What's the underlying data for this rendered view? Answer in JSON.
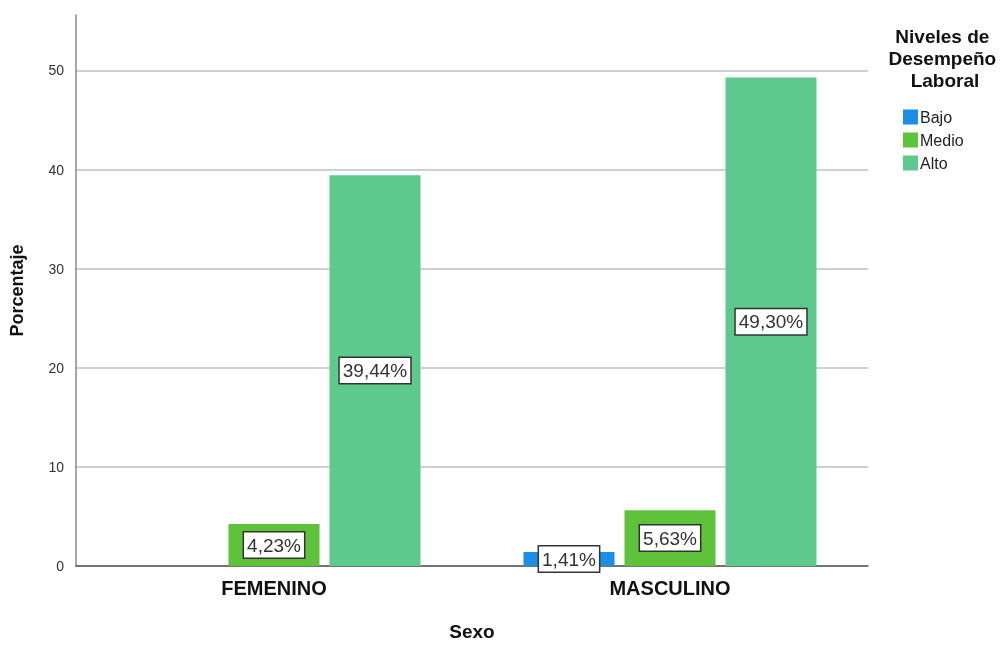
{
  "chart_data": {
    "type": "bar",
    "xlabel": "Sexo",
    "ylabel": "Porcentaje",
    "legend_title": "Niveles de Desempeño Laboral",
    "categories": [
      "FEMENINO",
      "MASCULINO"
    ],
    "series": [
      {
        "name": "Bajo",
        "color": "#1c8ee6",
        "values": [
          null,
          1.41
        ],
        "value_labels": [
          null,
          "1,41%"
        ]
      },
      {
        "name": "Medio",
        "color": "#5ec23a",
        "values": [
          4.23,
          5.63
        ],
        "value_labels": [
          "4,23%",
          "5,63%"
        ]
      },
      {
        "name": "Alto",
        "color": "#5ec98c",
        "values": [
          39.44,
          49.3
        ],
        "value_labels": [
          "39,44%",
          "49,30%"
        ]
      }
    ],
    "ylim": [
      0,
      55.6
    ],
    "yticks": [
      0,
      10,
      20,
      30,
      40,
      50
    ],
    "grid": "y",
    "legend": "top right"
  }
}
